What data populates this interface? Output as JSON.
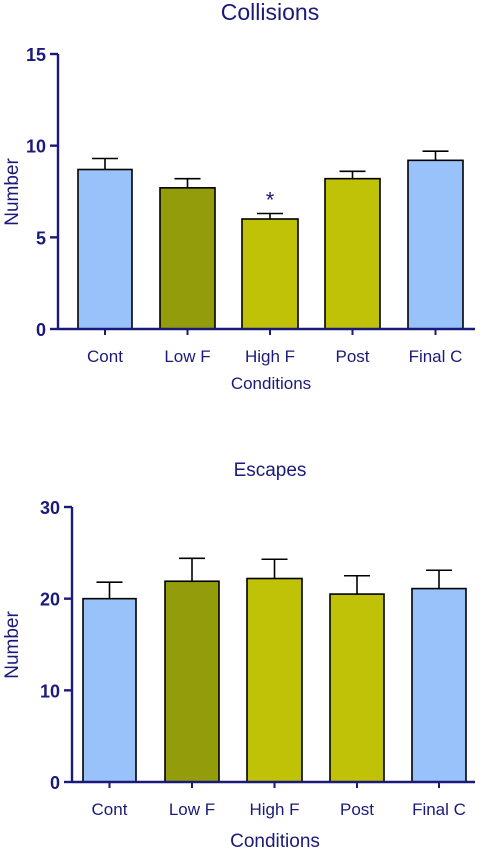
{
  "colors": {
    "axis": "#1a1a7a",
    "light_blue": "#99c2fb",
    "olive": "#939c0b",
    "yellow_green": "#c0c208",
    "bar_stroke": "#000000"
  },
  "chart_data": [
    {
      "type": "bar",
      "title": "Collisions",
      "xlabel": "Conditions",
      "ylabel": "Number",
      "ylim": [
        0,
        15
      ],
      "yticks": [
        "0",
        "5",
        "10",
        "15"
      ],
      "categories": [
        "Cont",
        "Low F",
        "High F",
        "Post",
        "Final C"
      ],
      "values": [
        8.7,
        7.7,
        6.0,
        8.2,
        9.2
      ],
      "errors": [
        0.6,
        0.5,
        0.3,
        0.4,
        0.5
      ],
      "bar_colors": [
        "light_blue",
        "olive",
        "yellow_green",
        "yellow_green",
        "light_blue"
      ],
      "annotations": [
        {
          "category": "High F",
          "text": "*"
        }
      ],
      "grid": false,
      "legend": "none"
    },
    {
      "type": "bar",
      "title": "Escapes",
      "xlabel": "Conditions",
      "ylabel": "Number",
      "ylim": [
        0,
        30
      ],
      "yticks": [
        "0",
        "10",
        "20",
        "30"
      ],
      "categories": [
        "Cont",
        "Low F",
        "High F",
        "Post",
        "Final C"
      ],
      "values": [
        20.0,
        21.9,
        22.2,
        20.5,
        21.1
      ],
      "errors": [
        1.8,
        2.5,
        2.1,
        2.0,
        2.0
      ],
      "bar_colors": [
        "light_blue",
        "olive",
        "yellow_green",
        "yellow_green",
        "light_blue"
      ],
      "annotations": [],
      "grid": false,
      "legend": "none"
    }
  ]
}
